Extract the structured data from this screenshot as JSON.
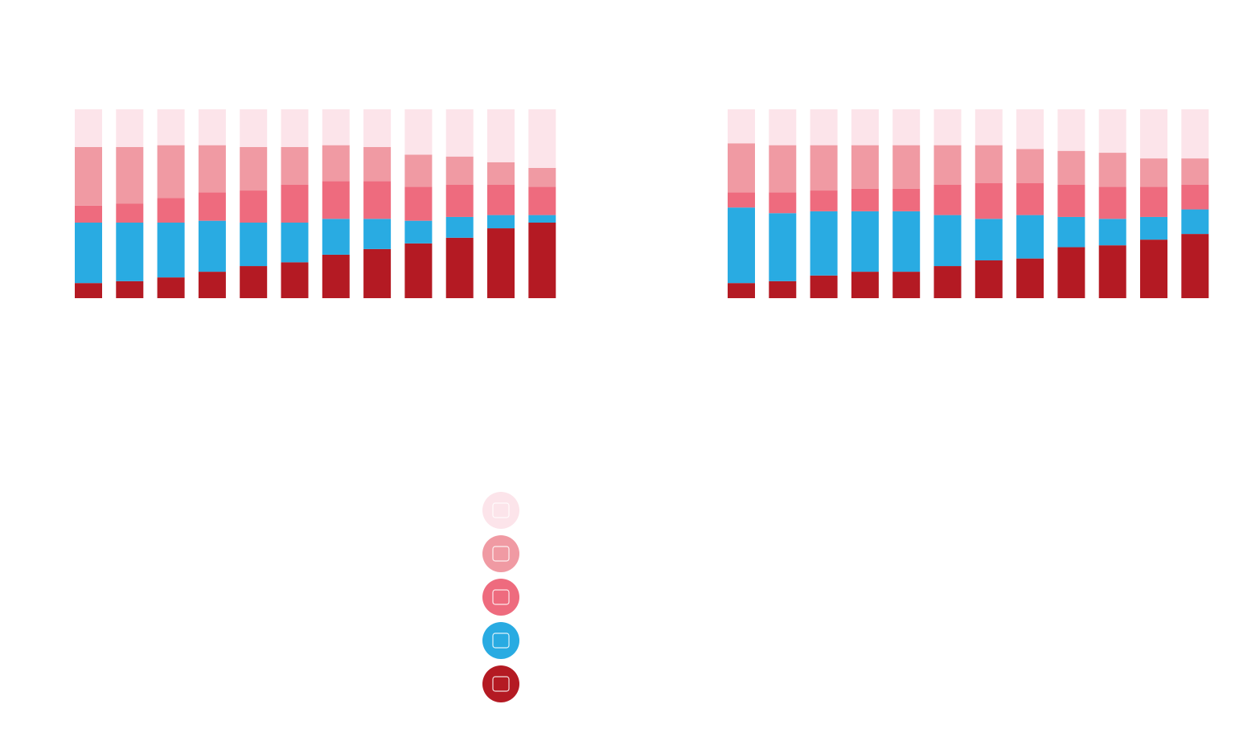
{
  "chart_data": [
    {
      "type": "bar",
      "stacked": true,
      "ylim": [
        0,
        100
      ],
      "series": [
        {
          "color": "#b41a23",
          "values": [
            8,
            9,
            11,
            14,
            17,
            19,
            23,
            26,
            29,
            32,
            37,
            40
          ]
        },
        {
          "color": "#29abe2",
          "values": [
            32,
            31,
            29,
            27,
            23,
            21,
            19,
            16,
            12,
            11,
            7,
            4
          ]
        },
        {
          "color": "#ee6b7e",
          "values": [
            9,
            10,
            13,
            15,
            17,
            20,
            20,
            20,
            18,
            17,
            16,
            15
          ]
        },
        {
          "color": "#f09aa3",
          "values": [
            31,
            30,
            28,
            25,
            23,
            20,
            19,
            18,
            17,
            15,
            12,
            10
          ]
        },
        {
          "color": "#fce4ea",
          "values": [
            20,
            20,
            19,
            19,
            20,
            20,
            19,
            20,
            24,
            25,
            28,
            31
          ]
        }
      ]
    },
    {
      "type": "bar",
      "stacked": true,
      "ylim": [
        0,
        100
      ],
      "series": [
        {
          "color": "#b41a23",
          "values": [
            8,
            9,
            12,
            14,
            14,
            17,
            20,
            21,
            27,
            28,
            31,
            34
          ]
        },
        {
          "color": "#29abe2",
          "values": [
            40,
            36,
            34,
            32,
            32,
            27,
            22,
            23,
            16,
            14,
            12,
            13
          ]
        },
        {
          "color": "#ee6b7e",
          "values": [
            8,
            11,
            11,
            12,
            12,
            16,
            19,
            17,
            17,
            17,
            16,
            13
          ]
        },
        {
          "color": "#f09aa3",
          "values": [
            26,
            25,
            24,
            23,
            23,
            21,
            20,
            18,
            18,
            18,
            15,
            14
          ]
        },
        {
          "color": "#fce4ea",
          "values": [
            18,
            19,
            19,
            19,
            19,
            19,
            19,
            21,
            22,
            23,
            26,
            26
          ]
        }
      ]
    }
  ]
}
